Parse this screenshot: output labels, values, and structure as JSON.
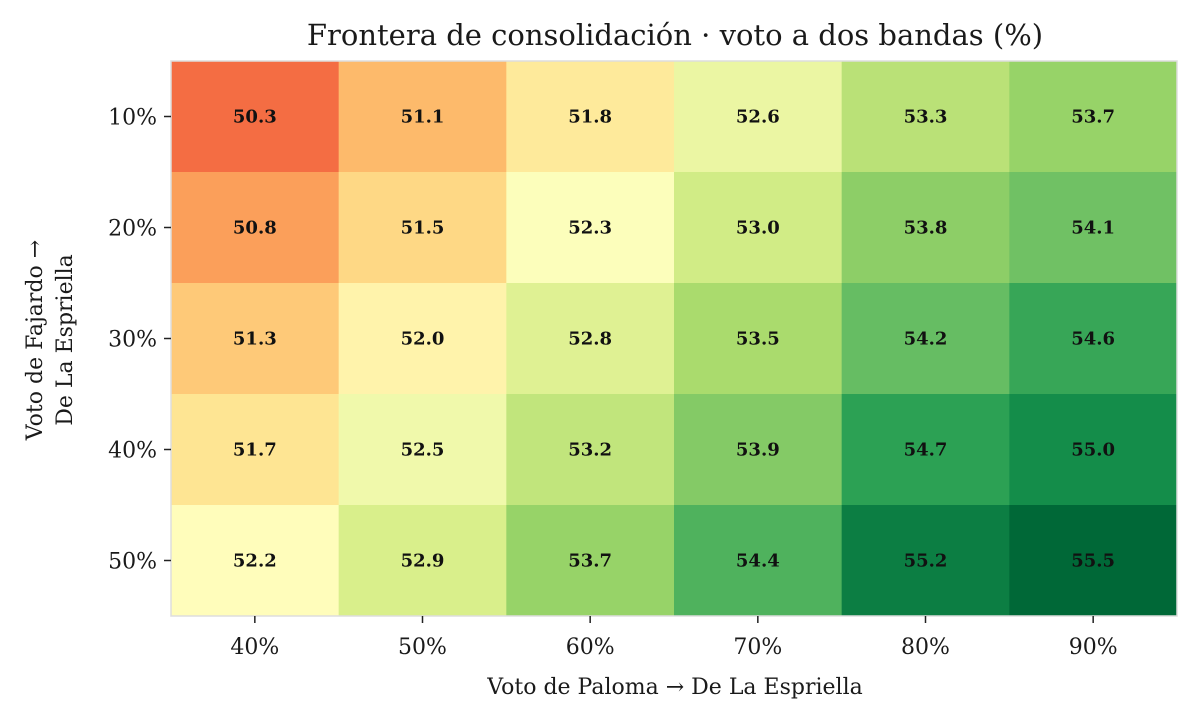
{
  "chart_data": {
    "type": "heatmap",
    "title": "Frontera de consolidación · voto a dos bandas (%)",
    "xlabel": "Voto de Paloma → De La Espriella",
    "ylabel_lines": [
      "Voto de Fajardo →",
      "De La Espriella"
    ],
    "x_categories": [
      "40%",
      "50%",
      "60%",
      "70%",
      "80%",
      "90%"
    ],
    "y_categories": [
      "10%",
      "20%",
      "30%",
      "40%",
      "50%"
    ],
    "values": [
      [
        50.3,
        51.1,
        51.8,
        52.6,
        53.3,
        53.7
      ],
      [
        50.8,
        51.5,
        52.3,
        53.0,
        53.8,
        54.1
      ],
      [
        51.3,
        52.0,
        52.8,
        53.5,
        54.2,
        54.6
      ],
      [
        51.7,
        52.5,
        53.2,
        53.9,
        54.7,
        55.0
      ],
      [
        52.2,
        52.9,
        53.7,
        54.4,
        55.2,
        55.5
      ]
    ],
    "colormap": "RdYlGn",
    "color_range": [
      49.0,
      55.5
    ],
    "grid": false
  }
}
